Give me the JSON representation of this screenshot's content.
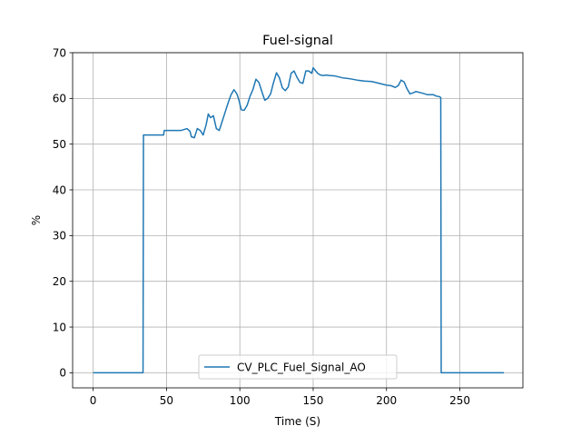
{
  "chart_data": {
    "type": "line",
    "title": "Fuel-signal",
    "xlabel": "Time (S)",
    "ylabel": "%",
    "xlim": [
      -14,
      293
    ],
    "ylim": [
      -3.3,
      70
    ],
    "xticks": [
      0,
      50,
      100,
      150,
      200,
      250
    ],
    "yticks": [
      0,
      10,
      20,
      30,
      40,
      50,
      60,
      70
    ],
    "grid": true,
    "legend_position": "lower center",
    "series": [
      {
        "name": "CV_PLC_Fuel_Signal_AO",
        "color": "#1f77b4",
        "x": [
          0,
          34,
          34.3,
          48,
          48.5,
          60,
          62,
          64,
          66,
          67,
          69,
          71,
          73,
          75,
          77,
          78.5,
          80,
          82,
          84,
          86,
          88,
          90,
          92,
          94,
          96,
          98,
          99.5,
          101,
          103,
          105,
          107,
          109,
          111,
          113,
          115,
          117,
          119,
          121,
          123,
          125,
          127,
          129,
          131,
          133,
          135,
          137,
          139,
          141,
          143,
          145,
          147,
          149,
          150,
          151,
          152,
          153,
          155,
          157,
          159,
          161,
          165,
          170,
          175,
          180,
          185,
          190,
          195,
          200,
          203,
          206,
          208,
          210,
          212,
          214,
          216,
          218,
          220,
          224,
          228,
          232,
          234,
          236,
          237,
          237.3,
          280
        ],
        "values": [
          0,
          0,
          52,
          52,
          53,
          53,
          53.2,
          53.4,
          52.8,
          51.6,
          51.4,
          53.4,
          53,
          52,
          54.2,
          56.6,
          55.8,
          56.2,
          53.4,
          53,
          55,
          57,
          59,
          60.8,
          61.9,
          61,
          59.5,
          57.5,
          57.4,
          58.5,
          60.5,
          62,
          64.2,
          63.5,
          61.5,
          59.6,
          60,
          61,
          63.5,
          65.6,
          64.5,
          62.3,
          61.7,
          62.5,
          65.5,
          66,
          64.6,
          63.5,
          63.3,
          66,
          66,
          65.5,
          66.7,
          66.3,
          65.9,
          65.5,
          65.1,
          65,
          65.1,
          65,
          64.9,
          64.5,
          64.3,
          64,
          63.8,
          63.7,
          63.3,
          62.9,
          62.8,
          62.4,
          62.8,
          64,
          63.6,
          62.1,
          61,
          61.2,
          61.5,
          61.2,
          60.8,
          60.8,
          60.5,
          60.4,
          60.2,
          0,
          0
        ]
      }
    ]
  }
}
